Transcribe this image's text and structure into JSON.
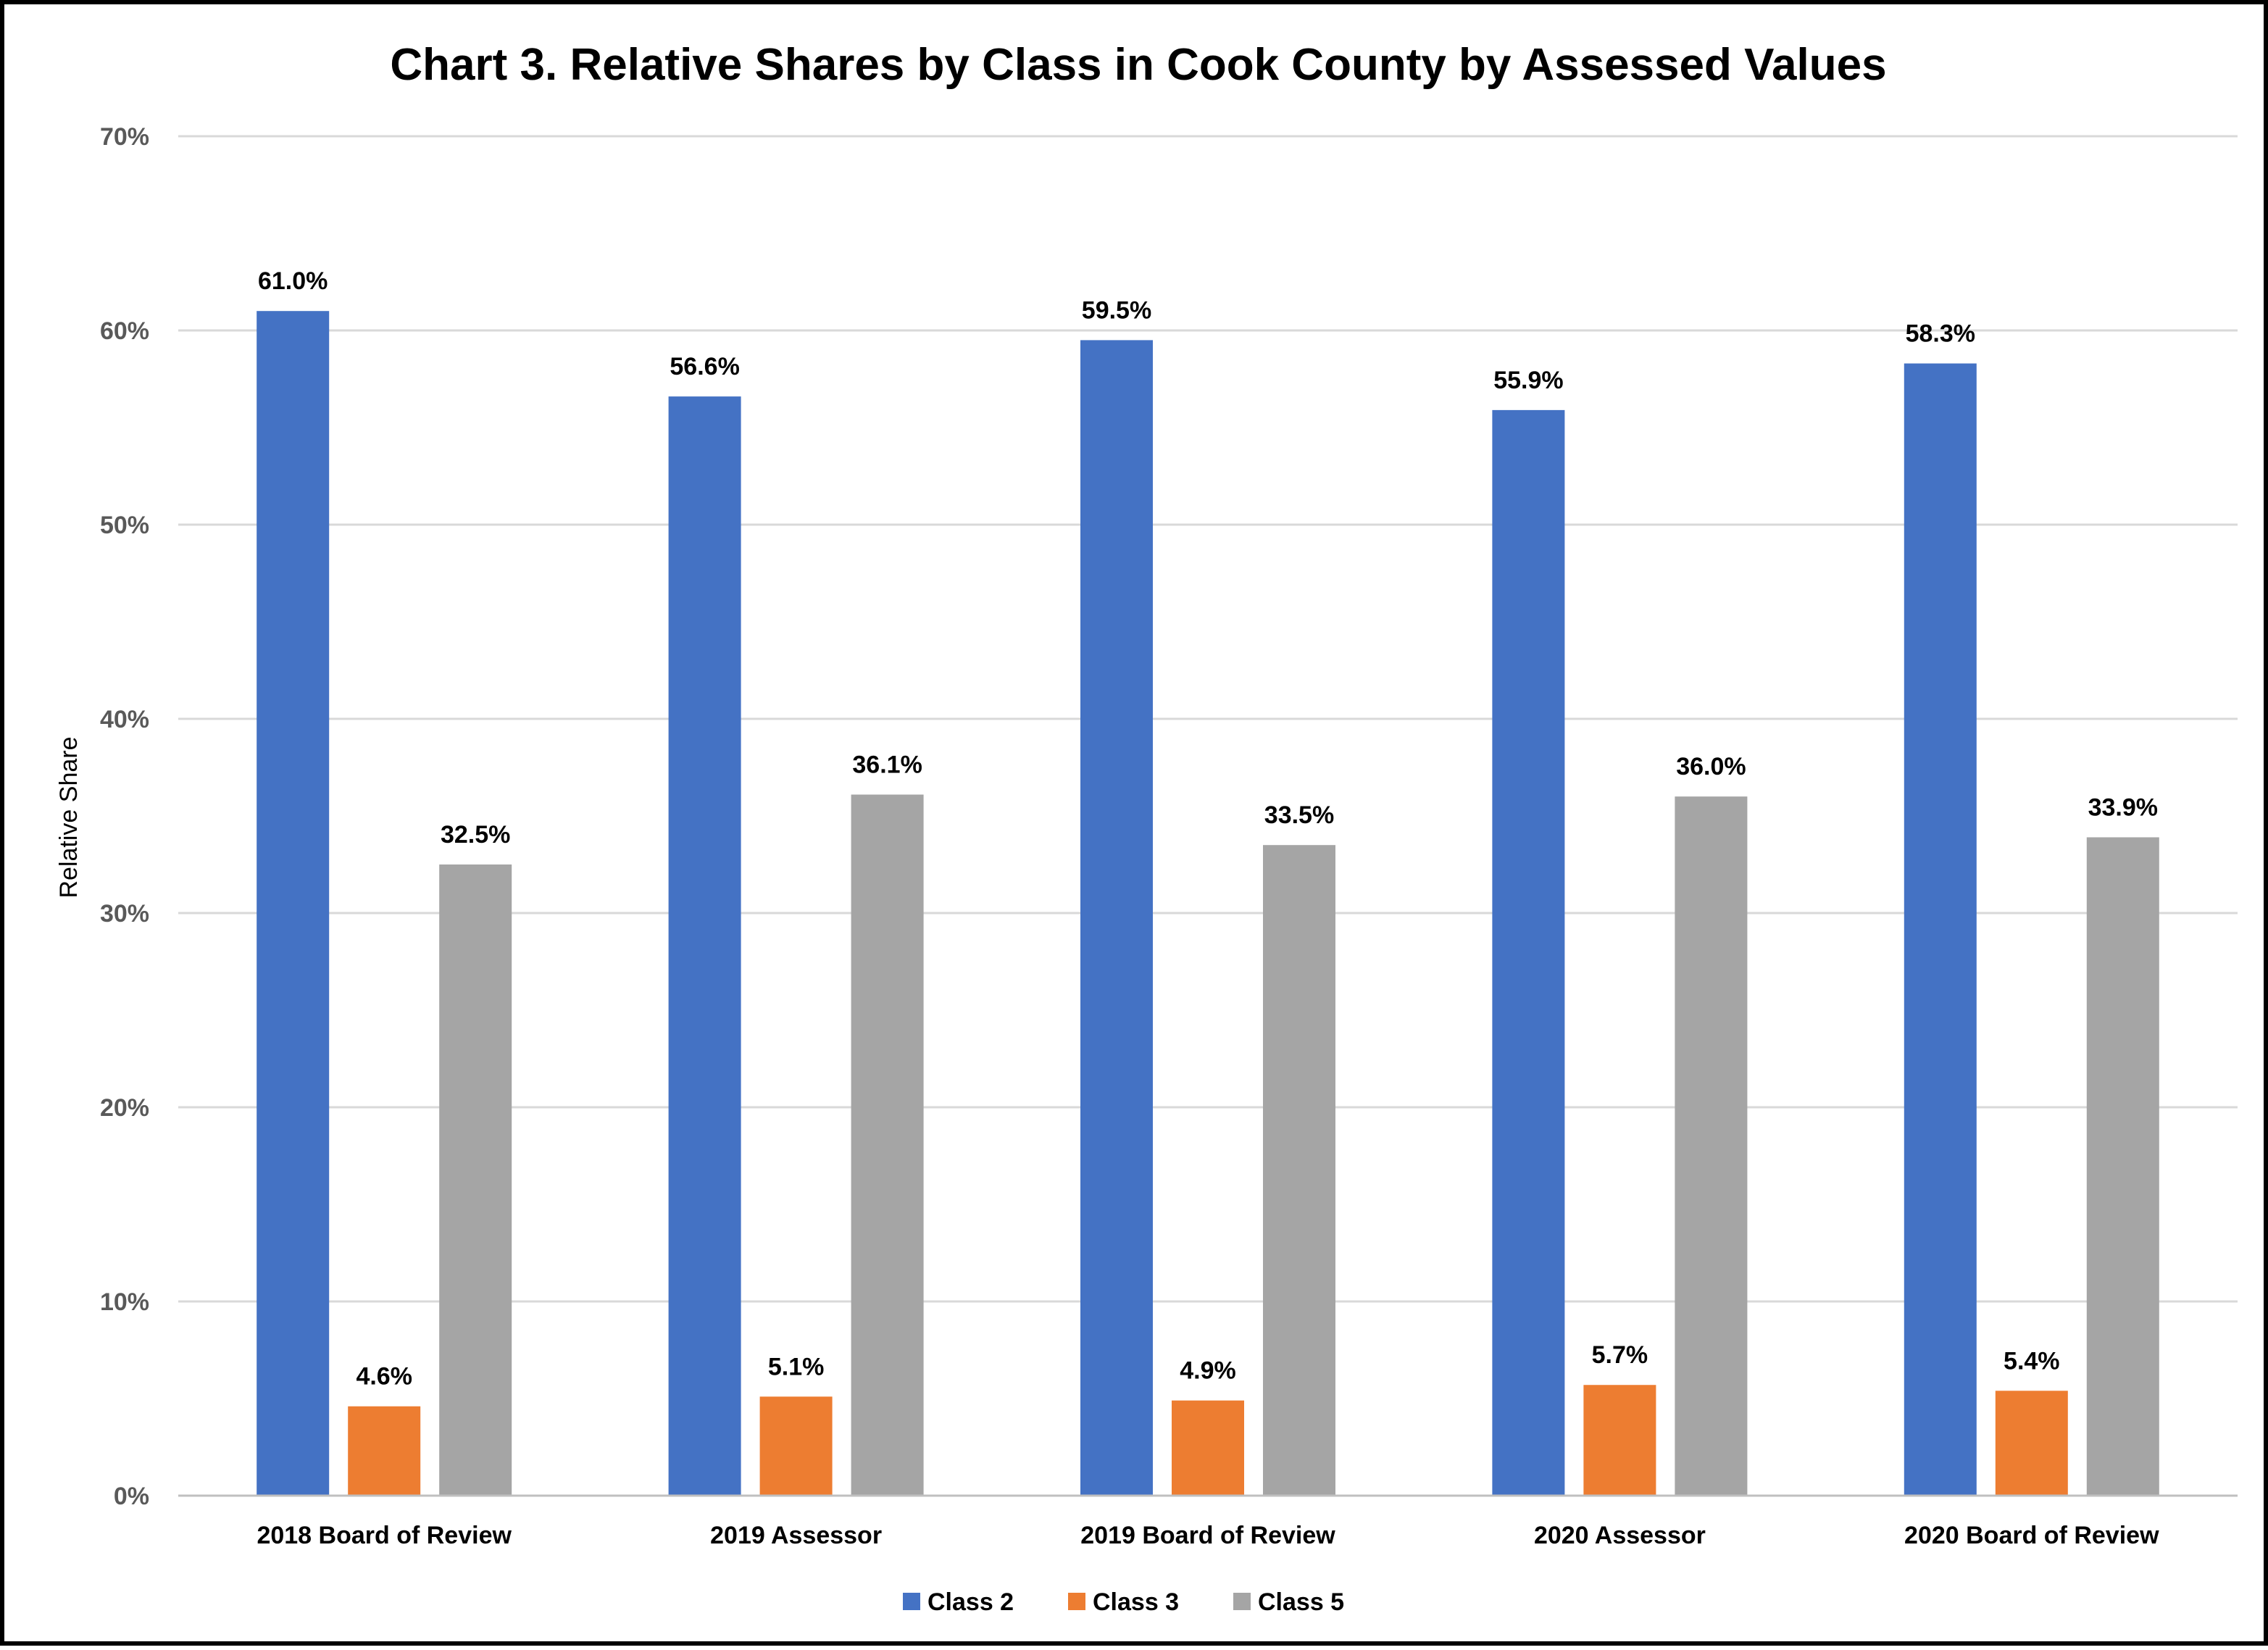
{
  "chart_data": {
    "type": "bar",
    "title": "Chart 3. Relative Shares by Class in Cook County by Assessed Values",
    "ylabel": "Relative Share",
    "xlabel": "",
    "ylim": [
      0,
      70
    ],
    "y_ticks": [
      "0%",
      "10%",
      "20%",
      "30%",
      "40%",
      "50%",
      "60%",
      "70%"
    ],
    "grid": "horizontal",
    "legend_position": "bottom",
    "categories": [
      "2018 Board of Review",
      "2019 Assessor",
      "2019 Board of Review",
      "2020 Assessor",
      "2020 Board of Review"
    ],
    "series": [
      {
        "name": "Class 2",
        "color": "#4472C4",
        "values": [
          61.0,
          56.6,
          59.5,
          55.9,
          58.3
        ],
        "labels": [
          "61.0%",
          "56.6%",
          "59.5%",
          "55.9%",
          "58.3%"
        ]
      },
      {
        "name": "Class 3",
        "color": "#ED7D31",
        "values": [
          4.6,
          5.1,
          4.9,
          5.7,
          5.4
        ],
        "labels": [
          "4.6%",
          "5.1%",
          "4.9%",
          "5.7%",
          "5.4%"
        ]
      },
      {
        "name": "Class 5",
        "color": "#A5A5A5",
        "values": [
          32.5,
          36.1,
          33.5,
          36.0,
          33.9
        ],
        "labels": [
          "32.5%",
          "36.1%",
          "33.5%",
          "36.0%",
          "33.9%"
        ]
      }
    ]
  }
}
